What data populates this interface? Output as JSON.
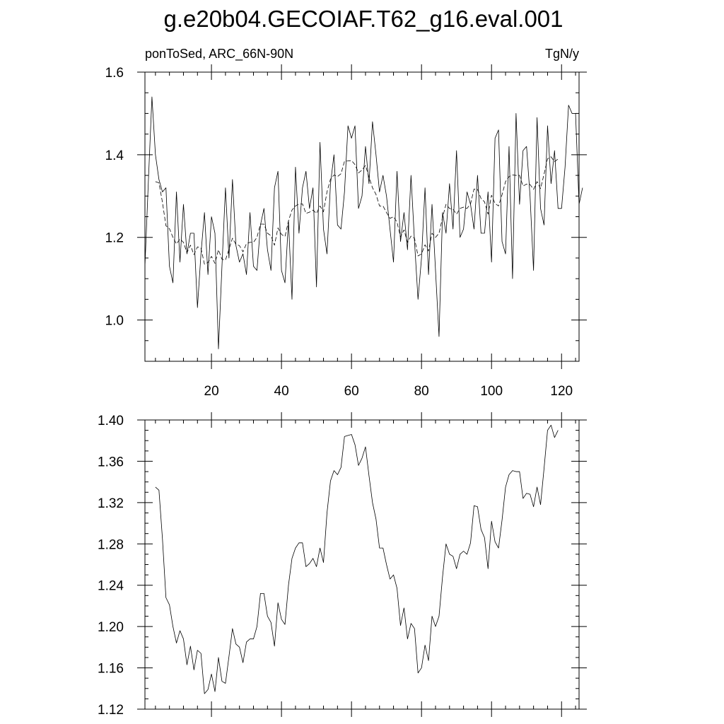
{
  "title": "g.e20b04.GECOIAF.T62_g16.eval.001",
  "chart_data": [
    {
      "type": "line",
      "left_label": "ponToSed, ARC_66N-90N",
      "right_label": "TgN/y",
      "xlim": [
        1,
        125
      ],
      "ylim": [
        0.9,
        1.6
      ],
      "x_ticks": [
        20,
        40,
        60,
        80,
        100,
        120
      ],
      "x_tick_labels": [
        "20",
        "40",
        "60",
        "80",
        "100",
        "120"
      ],
      "y_ticks": [
        1.0,
        1.2,
        1.4,
        1.6
      ],
      "y_tick_labels": [
        "1.0",
        "1.2",
        "1.4",
        "1.6"
      ],
      "grid": false,
      "series": [
        {
          "style": "solid",
          "x_start": 1,
          "values": [
            1.13,
            1.34,
            1.54,
            1.4,
            1.34,
            1.31,
            1.32,
            1.13,
            1.09,
            1.31,
            1.14,
            1.28,
            1.16,
            1.21,
            1.21,
            1.03,
            1.16,
            1.26,
            1.11,
            1.25,
            1.21,
            0.93,
            1.13,
            1.32,
            1.15,
            1.34,
            1.18,
            1.14,
            1.16,
            1.11,
            1.26,
            1.13,
            1.12,
            1.23,
            1.27,
            1.17,
            1.12,
            1.32,
            1.36,
            1.12,
            1.09,
            1.24,
            1.05,
            1.37,
            1.21,
            1.32,
            1.36,
            1.27,
            1.32,
            1.08,
            1.43,
            1.22,
            1.16,
            1.33,
            1.4,
            1.23,
            1.22,
            1.31,
            1.47,
            1.44,
            1.47,
            1.27,
            1.3,
            1.42,
            1.33,
            1.48,
            1.4,
            1.31,
            1.35,
            1.3,
            1.22,
            1.14,
            1.36,
            1.19,
            1.26,
            1.17,
            1.35,
            1.19,
            1.05,
            1.15,
            1.32,
            1.11,
            1.28,
            1.12,
            0.96,
            1.26,
            1.21,
            1.33,
            1.22,
            1.41,
            1.2,
            1.22,
            1.31,
            1.28,
            1.22,
            1.35,
            1.21,
            1.21,
            1.31,
            1.14,
            1.44,
            1.46,
            1.19,
            1.16,
            1.42,
            1.1,
            1.5,
            1.28,
            1.41,
            1.42,
            1.3,
            1.12,
            1.49,
            1.27,
            1.23,
            1.47,
            1.33,
            1.41,
            1.27,
            1.27,
            1.37,
            1.52,
            1.5,
            1.5,
            1.28,
            1.32
          ]
        },
        {
          "style": "dashed",
          "x_start": 4,
          "values": [
            1.335,
            1.332,
            1.285,
            1.228,
            1.221,
            1.2,
            1.184,
            1.196,
            1.188,
            1.163,
            1.181,
            1.158,
            1.177,
            1.174,
            1.135,
            1.139,
            1.154,
            1.137,
            1.17,
            1.147,
            1.145,
            1.171,
            1.198,
            1.183,
            1.18,
            1.165,
            1.185,
            1.188,
            1.188,
            1.2,
            1.232,
            1.232,
            1.21,
            1.204,
            1.181,
            1.223,
            1.207,
            1.202,
            1.24,
            1.266,
            1.276,
            1.281,
            1.281,
            1.258,
            1.261,
            1.266,
            1.258,
            1.276,
            1.262,
            1.31,
            1.341,
            1.351,
            1.347,
            1.354,
            1.384,
            1.385,
            1.386,
            1.376,
            1.356,
            1.363,
            1.374,
            1.346,
            1.32,
            1.304,
            1.276,
            1.276,
            1.26,
            1.246,
            1.25,
            1.237,
            1.201,
            1.218,
            1.188,
            1.203,
            1.198,
            1.155,
            1.16,
            1.182,
            1.167,
            1.21,
            1.2,
            1.21,
            1.248,
            1.28,
            1.27,
            1.268,
            1.256,
            1.27,
            1.273,
            1.27,
            1.281,
            1.317,
            1.316,
            1.294,
            1.286,
            1.256,
            1.302,
            1.282,
            1.276,
            1.303,
            1.335,
            1.347,
            1.351,
            1.35,
            1.35,
            1.324,
            1.329,
            1.328,
            1.316,
            1.335,
            1.318,
            1.353,
            1.39,
            1.395,
            1.383,
            1.39
          ]
        }
      ]
    },
    {
      "type": "line",
      "xlim": [
        1,
        125
      ],
      "ylim": [
        1.12,
        1.4
      ],
      "x_ticks": [
        20,
        40,
        60,
        80,
        100,
        120
      ],
      "y_ticks": [
        1.12,
        1.16,
        1.2,
        1.24,
        1.28,
        1.32,
        1.36,
        1.4
      ],
      "y_tick_labels": [
        "1.12",
        "1.16",
        "1.20",
        "1.24",
        "1.28",
        "1.32",
        "1.36",
        "1.40"
      ],
      "grid": false,
      "series": [
        {
          "style": "solid",
          "x_start": 4,
          "values": [
            1.335,
            1.332,
            1.285,
            1.228,
            1.221,
            1.2,
            1.184,
            1.196,
            1.188,
            1.163,
            1.181,
            1.158,
            1.177,
            1.174,
            1.135,
            1.139,
            1.154,
            1.137,
            1.17,
            1.147,
            1.145,
            1.171,
            1.198,
            1.183,
            1.18,
            1.165,
            1.185,
            1.188,
            1.188,
            1.2,
            1.232,
            1.232,
            1.21,
            1.204,
            1.181,
            1.223,
            1.207,
            1.202,
            1.24,
            1.266,
            1.276,
            1.281,
            1.281,
            1.258,
            1.261,
            1.266,
            1.258,
            1.276,
            1.262,
            1.31,
            1.341,
            1.351,
            1.347,
            1.354,
            1.384,
            1.385,
            1.386,
            1.376,
            1.356,
            1.363,
            1.374,
            1.346,
            1.32,
            1.304,
            1.276,
            1.276,
            1.26,
            1.246,
            1.25,
            1.237,
            1.201,
            1.218,
            1.188,
            1.203,
            1.198,
            1.155,
            1.16,
            1.182,
            1.167,
            1.21,
            1.2,
            1.21,
            1.248,
            1.28,
            1.27,
            1.268,
            1.256,
            1.27,
            1.273,
            1.27,
            1.281,
            1.317,
            1.316,
            1.294,
            1.286,
            1.256,
            1.302,
            1.282,
            1.276,
            1.303,
            1.335,
            1.347,
            1.351,
            1.35,
            1.35,
            1.324,
            1.329,
            1.328,
            1.316,
            1.335,
            1.318,
            1.353,
            1.39,
            1.395,
            1.383,
            1.39
          ]
        }
      ]
    }
  ]
}
